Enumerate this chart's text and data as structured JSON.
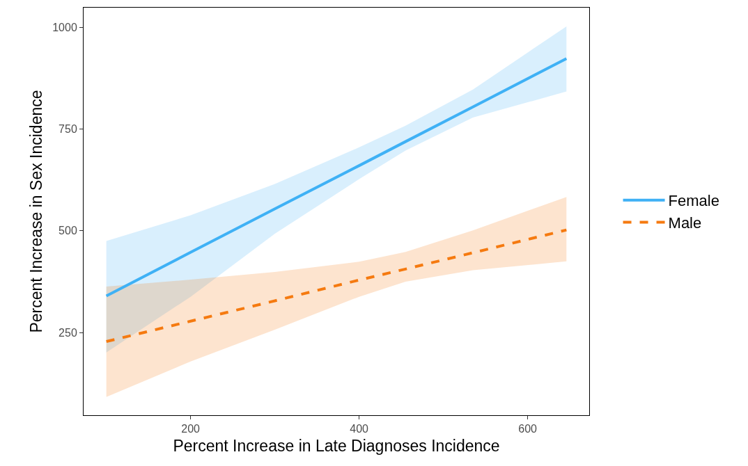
{
  "chart_data": {
    "type": "line",
    "xlabel": "Percent Increase in Late Diagnoses Incidence",
    "ylabel": "Percent Increase in Sex Incidence",
    "xlim": [
      73,
      673
    ],
    "xticks": [
      200,
      400,
      600
    ],
    "ylim": [
      47,
      1048
    ],
    "yticks": [
      250,
      500,
      750,
      1000
    ],
    "grid": false,
    "legend": "right",
    "marker": "none",
    "series": [
      {
        "name": "Female",
        "color": "#3fb1f5",
        "line_style": "solid",
        "x": [
          100,
          200,
          300,
          400,
          455,
          535,
          646
        ],
        "values": [
          340,
          447,
          554,
          660,
          719,
          804,
          923
        ],
        "lower": [
          201,
          338,
          493,
          627,
          697,
          778,
          842
        ],
        "upper": [
          475,
          538,
          615,
          705,
          758,
          847,
          1002
        ]
      },
      {
        "name": "Male",
        "color": "#f57a10",
        "line_style": "dashed",
        "x": [
          100,
          200,
          300,
          400,
          455,
          535,
          646
        ],
        "values": [
          228,
          278,
          328,
          379,
          406,
          446,
          502
        ],
        "lower": [
          92,
          179,
          257,
          338,
          375,
          403,
          425
        ],
        "upper": [
          363,
          380,
          399,
          424,
          448,
          501,
          583
        ]
      }
    ]
  }
}
